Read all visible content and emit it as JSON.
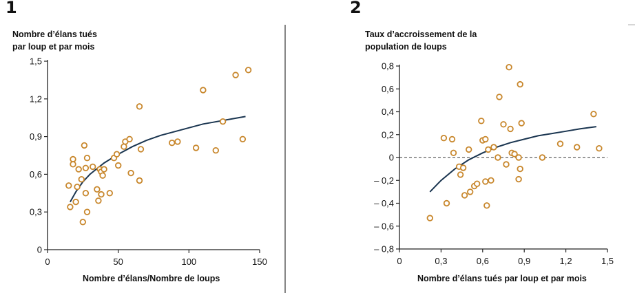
{
  "panels": [
    {
      "number": "1",
      "ylabel_lines": [
        "Nombre d’élans tués",
        "par loup et par mois"
      ],
      "xlabel": "Nombre d’élans/Nombre de loups"
    },
    {
      "number": "2",
      "ylabel_lines": [
        "Taux d’accroissement de la",
        "population de loups"
      ],
      "xlabel": "Nombre d’élans tués par loup et par mois"
    }
  ],
  "colors": {
    "points": "#c8872c",
    "curve": "#1a3550",
    "axis": "#222222",
    "divider": "#333333"
  },
  "chart_data": [
    {
      "type": "scatter",
      "title": "Nombre d’élans tués par loup et par mois",
      "xlabel": "Nombre d’élans/Nombre de loups",
      "ylabel": "Nombre d’élans tués par loup et par mois",
      "xlim": [
        0,
        150
      ],
      "ylim": [
        0,
        1.5
      ],
      "xticks": [
        0,
        50,
        100,
        150
      ],
      "xtick_labels": [
        "0",
        "50",
        "100",
        "150"
      ],
      "yticks": [
        0,
        0.3,
        0.6,
        0.9,
        1.2,
        1.5
      ],
      "ytick_labels": [
        "0",
        "0,3",
        "0,6",
        "0,9",
        "1,2",
        "1,5"
      ],
      "points": [
        [
          15,
          0.51
        ],
        [
          16,
          0.34
        ],
        [
          18,
          0.72
        ],
        [
          18,
          0.68
        ],
        [
          20,
          0.38
        ],
        [
          21,
          0.5
        ],
        [
          22,
          0.64
        ],
        [
          24,
          0.56
        ],
        [
          25,
          0.22
        ],
        [
          26,
          0.83
        ],
        [
          27,
          0.65
        ],
        [
          27,
          0.45
        ],
        [
          28,
          0.3
        ],
        [
          28,
          0.73
        ],
        [
          32,
          0.66
        ],
        [
          35,
          0.48
        ],
        [
          36,
          0.39
        ],
        [
          37,
          0.64
        ],
        [
          38,
          0.62
        ],
        [
          38,
          0.44
        ],
        [
          39,
          0.59
        ],
        [
          40,
          0.64
        ],
        [
          44,
          0.45
        ],
        [
          47,
          0.73
        ],
        [
          49,
          0.76
        ],
        [
          50,
          0.67
        ],
        [
          54,
          0.82
        ],
        [
          55,
          0.86
        ],
        [
          58,
          0.88
        ],
        [
          59,
          0.61
        ],
        [
          65,
          1.14
        ],
        [
          65,
          0.55
        ],
        [
          66,
          0.8
        ],
        [
          88,
          0.85
        ],
        [
          92,
          0.86
        ],
        [
          105,
          0.81
        ],
        [
          110,
          1.27
        ],
        [
          119,
          0.79
        ],
        [
          124,
          1.02
        ],
        [
          133,
          1.39
        ],
        [
          138,
          0.88
        ],
        [
          142,
          1.43
        ]
      ],
      "curve": [
        [
          16,
          0.38
        ],
        [
          20,
          0.46
        ],
        [
          25,
          0.54
        ],
        [
          30,
          0.6
        ],
        [
          40,
          0.69
        ],
        [
          50,
          0.76
        ],
        [
          60,
          0.82
        ],
        [
          70,
          0.87
        ],
        [
          80,
          0.91
        ],
        [
          90,
          0.94
        ],
        [
          100,
          0.97
        ],
        [
          110,
          1.0
        ],
        [
          120,
          1.02
        ],
        [
          130,
          1.04
        ],
        [
          140,
          1.06
        ]
      ]
    },
    {
      "type": "scatter",
      "title": "Taux d’accroissement de la population de loups",
      "xlabel": "Nombre d’élans tués par loup et par mois",
      "ylabel": "Taux d’accroissement de la population de loups",
      "xlim": [
        0,
        1.5
      ],
      "ylim": [
        -0.8,
        0.8
      ],
      "xticks": [
        0,
        0.3,
        0.6,
        0.9,
        1.2,
        1.5
      ],
      "xtick_labels": [
        "0",
        "0,3",
        "0,6",
        "0,9",
        "1,2",
        "1,5"
      ],
      "yticks": [
        -0.8,
        -0.6,
        -0.4,
        -0.2,
        0,
        0.2,
        0.4,
        0.6,
        0.8
      ],
      "ytick_labels": [
        "– 0,8",
        "– 0,6",
        "– 0,4",
        "– 0,2",
        "0",
        "0,2",
        "0,4",
        "0,6",
        "0,8"
      ],
      "reference_line": 0,
      "points": [
        [
          0.22,
          -0.53
        ],
        [
          0.32,
          0.17
        ],
        [
          0.34,
          -0.4
        ],
        [
          0.38,
          0.16
        ],
        [
          0.39,
          0.04
        ],
        [
          0.43,
          -0.08
        ],
        [
          0.44,
          -0.15
        ],
        [
          0.46,
          -0.09
        ],
        [
          0.47,
          -0.33
        ],
        [
          0.5,
          0.07
        ],
        [
          0.51,
          -0.3
        ],
        [
          0.54,
          -0.25
        ],
        [
          0.56,
          -0.23
        ],
        [
          0.59,
          0.32
        ],
        [
          0.6,
          0.15
        ],
        [
          0.62,
          -0.21
        ],
        [
          0.62,
          0.16
        ],
        [
          0.63,
          -0.42
        ],
        [
          0.64,
          0.07
        ],
        [
          0.66,
          -0.2
        ],
        [
          0.68,
          0.09
        ],
        [
          0.71,
          0.0
        ],
        [
          0.72,
          0.53
        ],
        [
          0.75,
          0.29
        ],
        [
          0.77,
          -0.06
        ],
        [
          0.79,
          0.79
        ],
        [
          0.8,
          0.25
        ],
        [
          0.81,
          0.04
        ],
        [
          0.83,
          0.03
        ],
        [
          0.86,
          -0.19
        ],
        [
          0.86,
          0.0
        ],
        [
          0.87,
          -0.1
        ],
        [
          0.87,
          0.64
        ],
        [
          0.88,
          0.3
        ],
        [
          1.03,
          0.0
        ],
        [
          1.16,
          0.12
        ],
        [
          1.28,
          0.09
        ],
        [
          1.4,
          0.38
        ],
        [
          1.44,
          0.08
        ]
      ],
      "curve": [
        [
          0.22,
          -0.3
        ],
        [
          0.3,
          -0.2
        ],
        [
          0.4,
          -0.1
        ],
        [
          0.5,
          -0.02
        ],
        [
          0.6,
          0.04
        ],
        [
          0.7,
          0.09
        ],
        [
          0.8,
          0.13
        ],
        [
          0.9,
          0.16
        ],
        [
          1.0,
          0.19
        ],
        [
          1.1,
          0.21
        ],
        [
          1.2,
          0.23
        ],
        [
          1.3,
          0.25
        ],
        [
          1.42,
          0.27
        ]
      ]
    }
  ]
}
